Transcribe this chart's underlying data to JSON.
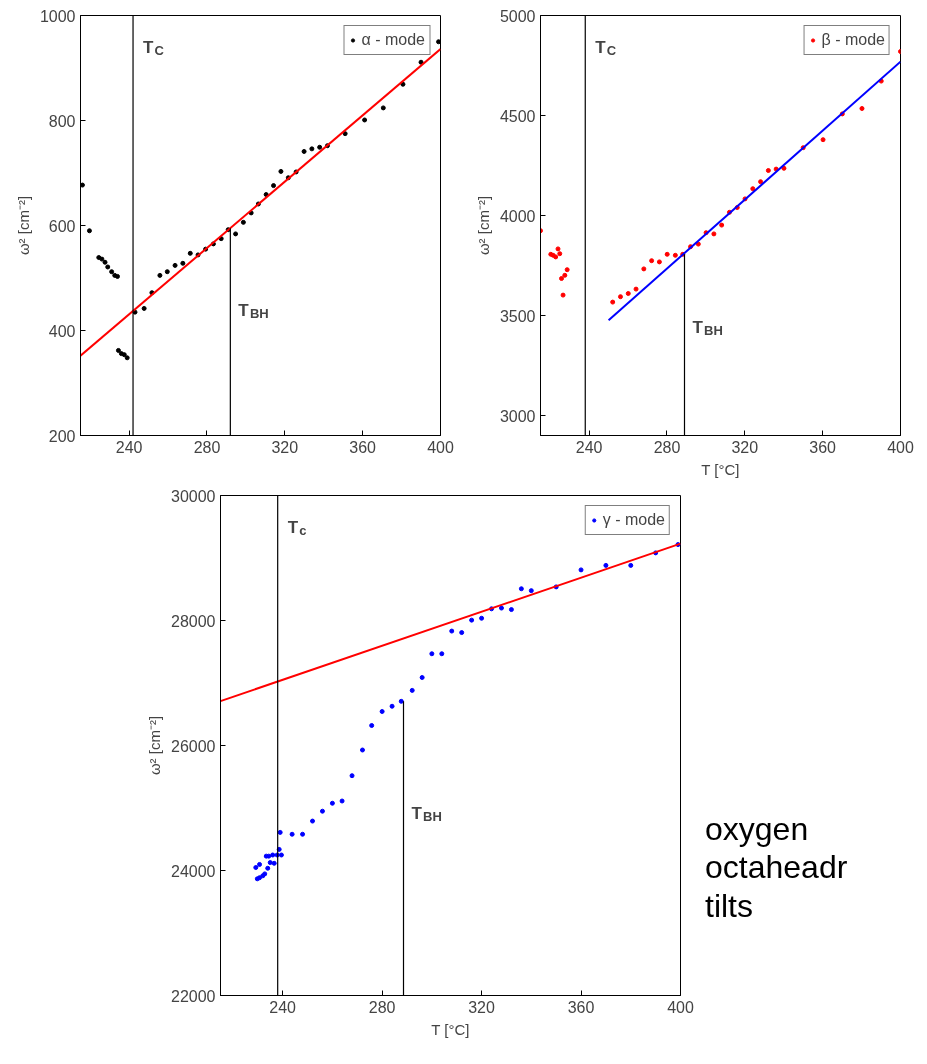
{
  "chart_data": [
    {
      "type": "scatter",
      "xlim": [
        215,
        400
      ],
      "ylim": [
        200,
        1000
      ],
      "xticks": [
        240,
        280,
        320,
        360,
        400
      ],
      "yticks": [
        200,
        400,
        600,
        800,
        1000
      ],
      "ylabel": "ω² [cm⁻²]",
      "legend": "top right",
      "ref_lines": [
        {
          "axis": "x",
          "value": 242,
          "label": "T$_{C}$",
          "color": "#000000"
        }
      ],
      "series": [
        {
          "name": "α - mode",
          "marker": "circle",
          "color": "#000000",
          "x": [
            216,
            219.6,
            224.4,
            226,
            227.6,
            229,
            231,
            232.6,
            234,
            234.5,
            236,
            237.5,
            239,
            243,
            247.7,
            251.7,
            255.8,
            259.6,
            263.6,
            267.6,
            271.4,
            275.4,
            279.3,
            283.3,
            287.3,
            290.9,
            294.7,
            298.7,
            302.7,
            306.4,
            310.4,
            314.2,
            318,
            321.8,
            325.8,
            329.9,
            333.9,
            337.9,
            341.9,
            351,
            361,
            370.6,
            380.7,
            390,
            399
          ],
          "values": [
            677,
            590,
            539,
            536,
            530,
            521,
            512,
            505,
            503,
            362,
            356,
            354,
            348,
            435,
            442,
            472,
            505,
            512,
            524,
            528,
            547,
            544,
            555,
            565,
            575,
            592,
            584,
            606,
            624,
            641,
            659,
            676,
            703,
            691,
            702,
            741,
            746,
            749,
            752,
            775,
            801,
            824,
            869,
            911,
            950
          ]
        },
        {
          "type": "line",
          "marker": "none",
          "color": "#ff0000",
          "x": [
            215,
            400
          ],
          "values": [
            352,
            936
          ]
        },
        {
          "type": "line",
          "marker": "none",
          "name": "T$_{BH}$",
          "color": "#000000",
          "x": [
            292,
            292
          ],
          "values": [
            595,
            200
          ]
        }
      ]
    },
    {
      "type": "scatter",
      "xlim": [
        215,
        400
      ],
      "ylim": [
        2900,
        5000
      ],
      "xticks": [
        240,
        280,
        320,
        360,
        400
      ],
      "yticks": [
        3000,
        3500,
        4000,
        4500,
        5000
      ],
      "xlabel": "T [°C]",
      "ylabel": "ω² [cm⁻²]",
      "legend": "top right",
      "ref_lines": [
        {
          "axis": "x",
          "value": 238,
          "label": "T$_{C}$",
          "color": "#000000"
        }
      ],
      "series": [
        {
          "name": "β - mode",
          "marker": "circle",
          "color": "#ff0000",
          "x": [
            215,
            220.3,
            221.5,
            222.8,
            224,
            224.9,
            225.8,
            226.6,
            227.5,
            228.7,
            252.1,
            256.1,
            260.1,
            264.1,
            268.1,
            272.1,
            276.1,
            280.1,
            284.3,
            288.1,
            292.1,
            296.1,
            300.1,
            304.1,
            308.1,
            312.1,
            316.1,
            320.1,
            324.1,
            328.1,
            332.1,
            336.1,
            340.1,
            350,
            360.2,
            370.1,
            380.2,
            390.1,
            400
          ],
          "values": [
            3924,
            3806,
            3801,
            3793,
            3833,
            3809,
            3685,
            3602,
            3701,
            3729,
            3567,
            3594,
            3610,
            3632,
            3733,
            3774,
            3768,
            3806,
            3801,
            3806,
            3844,
            3857,
            3914,
            3908,
            3952,
            4016,
            4040,
            4083,
            4134,
            4169,
            4225,
            4232,
            4236,
            4339,
            4379,
            4508,
            4535,
            4672,
            4820
          ]
        },
        {
          "type": "line",
          "marker": "none",
          "color": "#0000ff",
          "x": [
            250,
            400
          ],
          "values": [
            3476,
            4769
          ]
        },
        {
          "type": "line",
          "marker": "none",
          "name": "T$_{BH}$",
          "color": "#000000",
          "x": [
            289,
            289
          ],
          "values": [
            3806,
            2900
          ]
        }
      ]
    },
    {
      "type": "scatter",
      "xlim": [
        215,
        400
      ],
      "ylim": [
        22000,
        30000
      ],
      "xticks": [
        240,
        280,
        320,
        360,
        400
      ],
      "yticks": [
        22000,
        24000,
        26000,
        28000,
        30000
      ],
      "xlabel": "T [°C]",
      "ylabel": "ω² [cm⁻²]",
      "legend": "top right",
      "ref_lines": [
        {
          "axis": "x",
          "value": 238,
          "label": "T$_{c}$",
          "color": "#000000"
        }
      ],
      "annotations": [
        "oxygen octaheadr tilts"
      ],
      "series": [
        {
          "name": "γ - mode",
          "marker": "circle",
          "color": "#0000ff",
          "x": [
            229.2,
            230.7,
            229.8,
            230.7,
            232,
            232.8,
            233.4,
            234.4,
            234,
            235,
            236,
            236.6,
            237.8,
            238.6,
            239.5,
            239,
            243.8,
            248,
            252,
            256,
            260,
            263.9,
            267.9,
            272.1,
            275.8,
            280,
            284,
            287.7,
            292.1,
            296.1,
            300,
            304,
            308,
            312,
            316,
            320,
            324,
            328,
            332,
            336,
            340,
            350,
            360,
            370,
            380,
            390,
            399
          ],
          "values": [
            24048,
            24097,
            23867,
            23885,
            23915,
            23946,
            24230,
            24230,
            24036,
            24127,
            24248,
            24115,
            24248,
            24338,
            24248,
            24610,
            24580,
            24580,
            24791,
            24949,
            25076,
            25112,
            25517,
            25928,
            26320,
            26544,
            26628,
            26707,
            26882,
            27088,
            27468,
            27468,
            27831,
            27807,
            28006,
            28036,
            28187,
            28199,
            28175,
            28508,
            28478,
            28538,
            28810,
            28882,
            28882,
            29082,
            29215
          ]
        },
        {
          "type": "line",
          "marker": "none",
          "color": "#ff0000",
          "x": [
            215,
            400
          ],
          "values": [
            26710,
            29230
          ]
        },
        {
          "type": "line",
          "marker": "none",
          "name": "T$_{BH}$",
          "color": "#000000",
          "x": [
            288.6,
            288.6
          ],
          "values": [
            26710,
            22000
          ]
        }
      ]
    }
  ]
}
